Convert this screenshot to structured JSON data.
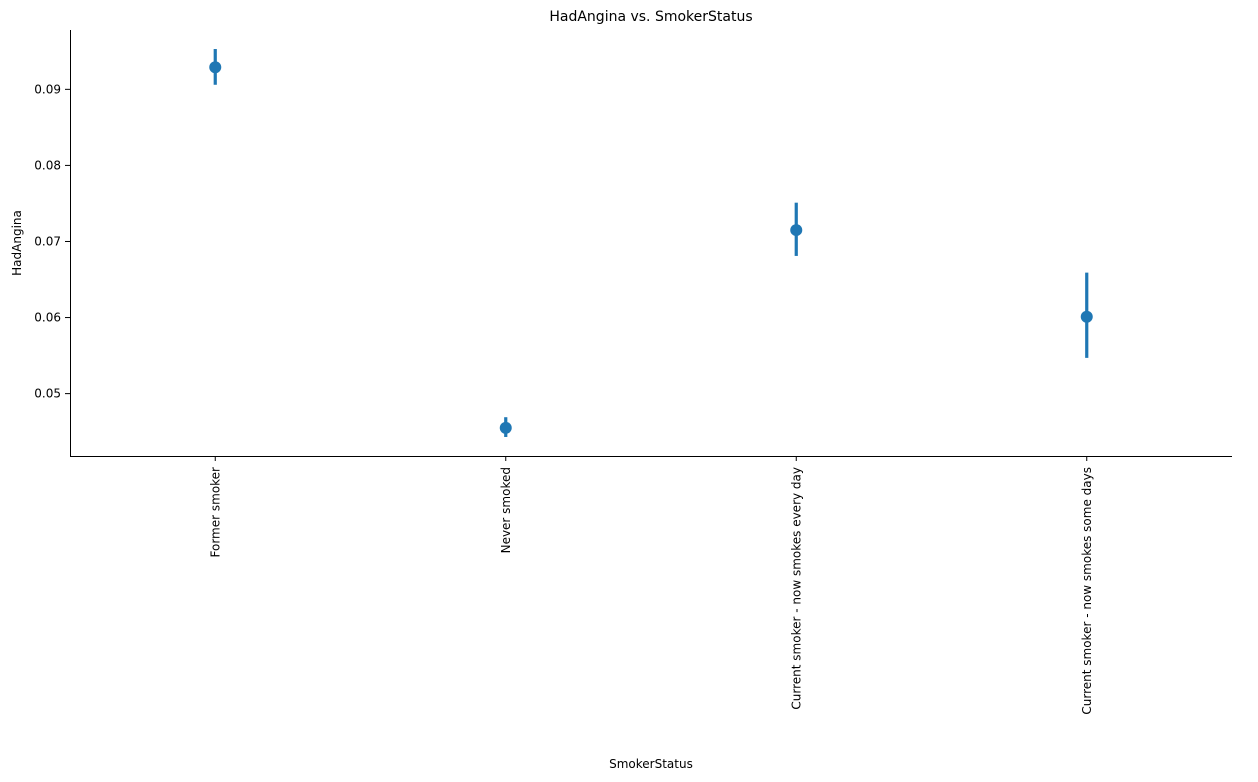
{
  "chart_data": {
    "type": "scatter",
    "subtype": "pointplot",
    "title": "HadAngina vs. SmokerStatus",
    "xlabel": "SmokerStatus",
    "ylabel": "HadAngina",
    "ylim": [
      0.0418,
      0.0978
    ],
    "yticks": [
      0.05,
      0.06,
      0.07,
      0.08,
      0.09
    ],
    "ytick_labels": [
      "0.05",
      "0.06",
      "0.07",
      "0.08",
      "0.09"
    ],
    "categories": [
      "Former smoker",
      "Never smoked",
      "Current smoker - now smokes every day",
      "Current smoker - now smokes some days"
    ],
    "values": [
      0.0929,
      0.0455,
      0.0715,
      0.0601
    ],
    "ci_low": [
      0.0906,
      0.0443,
      0.0681,
      0.0547
    ],
    "ci_high": [
      0.0953,
      0.0469,
      0.0751,
      0.0659
    ],
    "color": "#1f77b4",
    "grid": false,
    "legend": "none"
  }
}
